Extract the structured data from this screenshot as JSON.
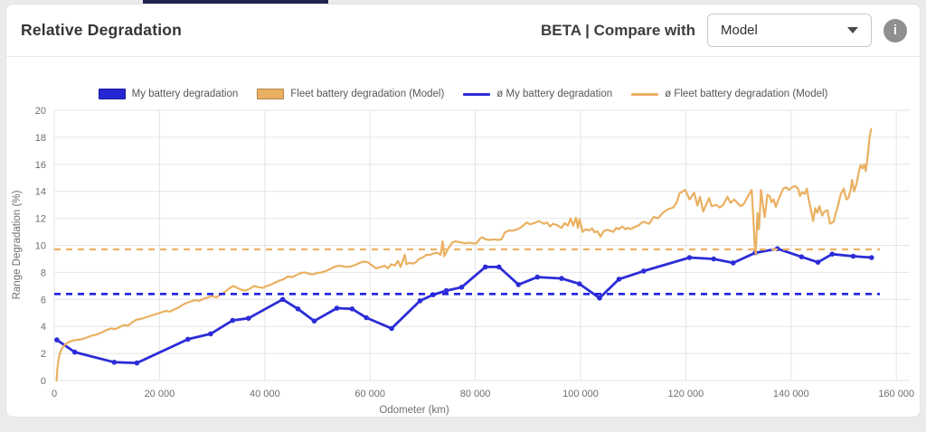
{
  "header": {
    "title": "Relative Degradation",
    "beta_label": "BETA | Compare with",
    "dropdown": {
      "value": "Model"
    },
    "info_icon_glyph": "i",
    "accent_bar_color": "#232350"
  },
  "chart": {
    "legend": [
      {
        "label": "My battery degradation",
        "swatch": "box",
        "color": "#2626d2"
      },
      {
        "label": "Fleet battery degradation (Model)",
        "swatch": "box",
        "color": "#eab061"
      },
      {
        "label": "ø My battery degradation",
        "swatch": "line",
        "color": "#2c2cd8"
      },
      {
        "label": "ø Fleet battery degradation (Model)",
        "swatch": "line",
        "color": "#eab061"
      }
    ],
    "grid_color": "#e4e4e4",
    "tick_color": "#6e6e6e"
  },
  "chart_data": {
    "type": "line",
    "title": "",
    "xlabel": "Odometer (km)",
    "ylabel": "Range Degradation (%)",
    "xlim": [
      0,
      164000
    ],
    "ylim": [
      0,
      20
    ],
    "grid": true,
    "legend_position": "top",
    "x_ticks": [
      {
        "value": 0,
        "label": "0"
      },
      {
        "value": 20000,
        "label": "20 000"
      },
      {
        "value": 40000,
        "label": "40 000"
      },
      {
        "value": 60000,
        "label": "60 000"
      },
      {
        "value": 80000,
        "label": "80 000"
      },
      {
        "value": 100000,
        "label": "100 000"
      },
      {
        "value": 120000,
        "label": "120 000"
      },
      {
        "value": 140000,
        "label": "140 000"
      },
      {
        "value": 160000,
        "label": "160 000"
      }
    ],
    "y_ticks": [
      0,
      2,
      4,
      6,
      8,
      10,
      12,
      14,
      16,
      18,
      20
    ],
    "series": [
      {
        "name": "My battery degradation",
        "color": "#2c2cd8",
        "width": 2.8,
        "markers": true,
        "points": [
          [
            500,
            3.0
          ],
          [
            3900,
            2.1
          ],
          [
            11400,
            1.35
          ],
          [
            15700,
            1.3
          ],
          [
            25400,
            3.05
          ],
          [
            29700,
            3.45
          ],
          [
            33900,
            4.45
          ],
          [
            36900,
            4.6
          ],
          [
            43400,
            6.0
          ],
          [
            46300,
            5.3
          ],
          [
            49400,
            4.4
          ],
          [
            53700,
            5.35
          ],
          [
            56600,
            5.3
          ],
          [
            59300,
            4.65
          ],
          [
            64100,
            3.85
          ],
          [
            69500,
            5.9
          ],
          [
            72000,
            6.35
          ],
          [
            74500,
            6.65
          ],
          [
            77400,
            6.9
          ],
          [
            81900,
            8.4
          ],
          [
            84500,
            8.4
          ],
          [
            88200,
            7.1
          ],
          [
            91800,
            7.65
          ],
          [
            96400,
            7.55
          ],
          [
            99800,
            7.15
          ],
          [
            103600,
            6.1
          ],
          [
            107300,
            7.5
          ],
          [
            112000,
            8.1
          ],
          [
            120700,
            9.1
          ],
          [
            125300,
            9.0
          ],
          [
            129000,
            8.7
          ],
          [
            133200,
            9.45
          ],
          [
            137400,
            9.75
          ],
          [
            142000,
            9.15
          ],
          [
            145100,
            8.75
          ],
          [
            147800,
            9.35
          ],
          [
            151800,
            9.2
          ],
          [
            155300,
            9.1
          ]
        ]
      },
      {
        "name": "Fleet battery degradation (Model)",
        "color": "#eab061",
        "width": 2.2,
        "markers": false,
        "points": [
          [
            450,
            0
          ],
          [
            600,
            0.9
          ],
          [
            800,
            1.5
          ],
          [
            1000,
            1.9
          ],
          [
            1300,
            2.25
          ],
          [
            1700,
            2.5
          ],
          [
            2200,
            2.7
          ],
          [
            2800,
            2.85
          ],
          [
            3500,
            2.95
          ],
          [
            4300,
            3.0
          ],
          [
            5100,
            3.05
          ],
          [
            6000,
            3.15
          ],
          [
            7000,
            3.3
          ],
          [
            8000,
            3.4
          ],
          [
            9000,
            3.55
          ],
          [
            10000,
            3.75
          ],
          [
            10800,
            3.85
          ],
          [
            11600,
            3.8
          ],
          [
            12400,
            3.95
          ],
          [
            13200,
            4.1
          ],
          [
            14000,
            4.05
          ],
          [
            14800,
            4.3
          ],
          [
            15600,
            4.5
          ],
          [
            16400,
            4.55
          ],
          [
            17200,
            4.65
          ],
          [
            18000,
            4.75
          ],
          [
            18800,
            4.85
          ],
          [
            19600,
            4.95
          ],
          [
            20400,
            5.05
          ],
          [
            21200,
            5.15
          ],
          [
            22000,
            5.1
          ],
          [
            22800,
            5.25
          ],
          [
            23600,
            5.4
          ],
          [
            24400,
            5.6
          ],
          [
            25200,
            5.75
          ],
          [
            26000,
            5.85
          ],
          [
            26800,
            5.95
          ],
          [
            27600,
            5.9
          ],
          [
            28400,
            6.05
          ],
          [
            29200,
            6.15
          ],
          [
            30000,
            6.25
          ],
          [
            30800,
            6.15
          ],
          [
            31600,
            6.35
          ],
          [
            32400,
            6.55
          ],
          [
            33200,
            6.8
          ],
          [
            34000,
            7.0
          ],
          [
            34800,
            6.85
          ],
          [
            35600,
            6.7
          ],
          [
            36400,
            6.65
          ],
          [
            37200,
            6.8
          ],
          [
            38000,
            7.0
          ],
          [
            38800,
            6.9
          ],
          [
            39600,
            6.85
          ],
          [
            40400,
            7.0
          ],
          [
            41200,
            7.1
          ],
          [
            42000,
            7.25
          ],
          [
            42800,
            7.4
          ],
          [
            43600,
            7.5
          ],
          [
            44400,
            7.7
          ],
          [
            45200,
            7.65
          ],
          [
            46000,
            7.8
          ],
          [
            46800,
            7.95
          ],
          [
            47600,
            8.0
          ],
          [
            48400,
            7.9
          ],
          [
            49200,
            7.85
          ],
          [
            50000,
            7.95
          ],
          [
            50800,
            8.0
          ],
          [
            51600,
            8.1
          ],
          [
            52400,
            8.25
          ],
          [
            53200,
            8.4
          ],
          [
            54000,
            8.5
          ],
          [
            54800,
            8.45
          ],
          [
            55600,
            8.4
          ],
          [
            56400,
            8.45
          ],
          [
            57200,
            8.55
          ],
          [
            58000,
            8.7
          ],
          [
            58800,
            8.8
          ],
          [
            59600,
            8.75
          ],
          [
            60400,
            8.5
          ],
          [
            61200,
            8.3
          ],
          [
            62000,
            8.4
          ],
          [
            62800,
            8.5
          ],
          [
            63400,
            8.3
          ],
          [
            64000,
            8.6
          ],
          [
            64700,
            8.5
          ],
          [
            65300,
            8.85
          ],
          [
            65800,
            8.4
          ],
          [
            66600,
            9.3
          ],
          [
            66900,
            8.6
          ],
          [
            67500,
            8.7
          ],
          [
            68100,
            8.65
          ],
          [
            68700,
            8.75
          ],
          [
            69300,
            9.0
          ],
          [
            70000,
            9.1
          ],
          [
            70700,
            9.3
          ],
          [
            71400,
            9.3
          ],
          [
            72100,
            9.4
          ],
          [
            72800,
            9.45
          ],
          [
            73400,
            9.3
          ],
          [
            73800,
            10.3
          ],
          [
            74100,
            9.2
          ],
          [
            74500,
            9.5
          ],
          [
            75000,
            9.85
          ],
          [
            75600,
            10.2
          ],
          [
            76200,
            10.3
          ],
          [
            76900,
            10.25
          ],
          [
            77500,
            10.2
          ],
          [
            78100,
            10.15
          ],
          [
            78800,
            10.2
          ],
          [
            79500,
            10.15
          ],
          [
            80200,
            10.15
          ],
          [
            80900,
            10.5
          ],
          [
            81300,
            10.6
          ],
          [
            81900,
            10.45
          ],
          [
            82700,
            10.4
          ],
          [
            83500,
            10.45
          ],
          [
            84400,
            10.4
          ],
          [
            85000,
            10.45
          ],
          [
            85600,
            10.95
          ],
          [
            86400,
            11.1
          ],
          [
            87200,
            11.1
          ],
          [
            88100,
            11.2
          ],
          [
            88900,
            11.4
          ],
          [
            89800,
            11.7
          ],
          [
            90400,
            11.55
          ],
          [
            91200,
            11.65
          ],
          [
            92100,
            11.8
          ],
          [
            93000,
            11.6
          ],
          [
            93600,
            11.7
          ],
          [
            94200,
            11.4
          ],
          [
            94800,
            11.6
          ],
          [
            95500,
            11.5
          ],
          [
            96400,
            11.3
          ],
          [
            97000,
            11.65
          ],
          [
            97600,
            11.45
          ],
          [
            98100,
            12.0
          ],
          [
            98600,
            11.45
          ],
          [
            99100,
            12.05
          ],
          [
            99500,
            11.3
          ],
          [
            99800,
            11.95
          ],
          [
            100400,
            11.0
          ],
          [
            101000,
            11.2
          ],
          [
            101600,
            11.1
          ],
          [
            102200,
            11.25
          ],
          [
            102700,
            10.95
          ],
          [
            103200,
            11.05
          ],
          [
            103800,
            10.65
          ],
          [
            104400,
            11.05
          ],
          [
            105000,
            11.15
          ],
          [
            105600,
            11.1
          ],
          [
            106200,
            11.0
          ],
          [
            106800,
            11.3
          ],
          [
            107300,
            11.2
          ],
          [
            107900,
            11.4
          ],
          [
            108500,
            11.2
          ],
          [
            109000,
            11.3
          ],
          [
            109600,
            11.2
          ],
          [
            110200,
            11.35
          ],
          [
            110900,
            11.45
          ],
          [
            111900,
            11.75
          ],
          [
            113000,
            11.6
          ],
          [
            113900,
            12.1
          ],
          [
            114700,
            12.0
          ],
          [
            115600,
            12.4
          ],
          [
            116500,
            12.65
          ],
          [
            117600,
            12.8
          ],
          [
            118300,
            13.2
          ],
          [
            118800,
            13.85
          ],
          [
            119900,
            14.1
          ],
          [
            120700,
            13.4
          ],
          [
            121600,
            13.9
          ],
          [
            122200,
            12.95
          ],
          [
            122700,
            13.6
          ],
          [
            123300,
            12.5
          ],
          [
            123900,
            13.05
          ],
          [
            124400,
            13.5
          ],
          [
            124900,
            12.9
          ],
          [
            125800,
            13.0
          ],
          [
            126400,
            12.8
          ],
          [
            127100,
            13.0
          ],
          [
            127900,
            13.6
          ],
          [
            128500,
            13.15
          ],
          [
            129200,
            13.4
          ],
          [
            130400,
            12.9
          ],
          [
            131000,
            13.05
          ],
          [
            131900,
            13.7
          ],
          [
            132500,
            14.1
          ],
          [
            132800,
            12.2
          ],
          [
            133100,
            10.0
          ],
          [
            133300,
            9.35
          ],
          [
            133600,
            12.4
          ],
          [
            133900,
            11.2
          ],
          [
            134300,
            14.1
          ],
          [
            134700,
            12.8
          ],
          [
            135000,
            12.1
          ],
          [
            135500,
            13.75
          ],
          [
            135900,
            13.65
          ],
          [
            136300,
            13.2
          ],
          [
            136700,
            13.4
          ],
          [
            137100,
            12.85
          ],
          [
            137500,
            13.3
          ],
          [
            137900,
            13.65
          ],
          [
            138500,
            14.2
          ],
          [
            139100,
            14.3
          ],
          [
            139600,
            14.1
          ],
          [
            140200,
            14.3
          ],
          [
            140800,
            14.4
          ],
          [
            141300,
            14.2
          ],
          [
            141700,
            13.65
          ],
          [
            142100,
            13.95
          ],
          [
            142600,
            13.8
          ],
          [
            143000,
            14.2
          ],
          [
            143400,
            13.3
          ],
          [
            143800,
            12.6
          ],
          [
            144200,
            11.8
          ],
          [
            144600,
            12.75
          ],
          [
            145000,
            12.4
          ],
          [
            145400,
            12.9
          ],
          [
            145900,
            12.2
          ],
          [
            146300,
            12.5
          ],
          [
            146900,
            12.6
          ],
          [
            147400,
            11.6
          ],
          [
            148100,
            11.75
          ],
          [
            148500,
            12.4
          ],
          [
            148900,
            12.9
          ],
          [
            149400,
            13.75
          ],
          [
            150000,
            14.2
          ],
          [
            150500,
            13.4
          ],
          [
            150900,
            13.5
          ],
          [
            151300,
            14.1
          ],
          [
            151600,
            14.85
          ],
          [
            152000,
            14.0
          ],
          [
            152400,
            14.5
          ],
          [
            152800,
            15.3
          ],
          [
            153200,
            15.95
          ],
          [
            153600,
            15.7
          ],
          [
            153900,
            16.0
          ],
          [
            154200,
            15.5
          ],
          [
            154500,
            16.4
          ],
          [
            154700,
            17.2
          ],
          [
            154900,
            17.95
          ],
          [
            155200,
            18.6
          ]
        ]
      },
      {
        "name": "ø My battery degradation",
        "color": "#2222e0",
        "width": 2.6,
        "style": "dashed",
        "value": 6.4
      },
      {
        "name": "ø Fleet battery degradation (Model)",
        "color": "#edb468",
        "width": 2.4,
        "style": "dashed",
        "value": 9.7
      }
    ]
  }
}
